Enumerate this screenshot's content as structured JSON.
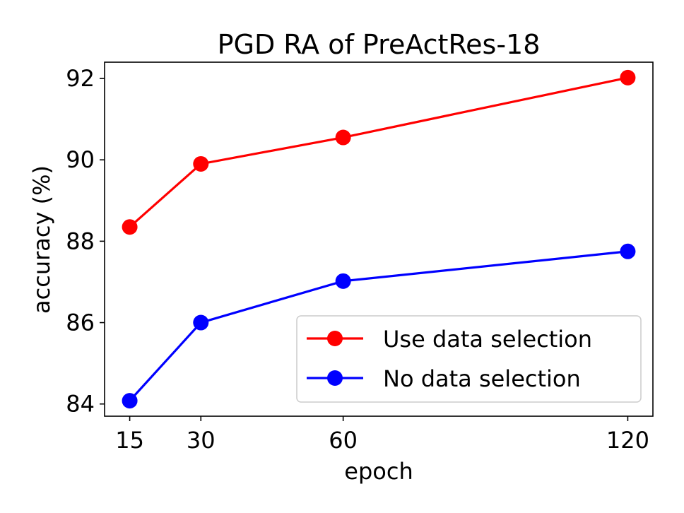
{
  "chart_data": {
    "type": "line",
    "title": "PGD RA of PreActRes-18",
    "xlabel": "epoch",
    "ylabel": "accuracy (%)",
    "x": [
      15,
      30,
      60,
      120
    ],
    "x_ticks": [
      "15",
      "30",
      "60",
      "120"
    ],
    "y_ticks": [
      84,
      86,
      88,
      90,
      92
    ],
    "xlim": [
      9.7,
      125.3
    ],
    "ylim": [
      83.7,
      92.4
    ],
    "grid": false,
    "legend_position": "lower-right",
    "series": [
      {
        "name": "Use data selection",
        "color": "#ff0000",
        "values": [
          88.35,
          89.9,
          90.55,
          92.02
        ]
      },
      {
        "name": "No data selection",
        "color": "#0000ff",
        "values": [
          84.08,
          86.0,
          87.02,
          87.75
        ]
      }
    ]
  }
}
